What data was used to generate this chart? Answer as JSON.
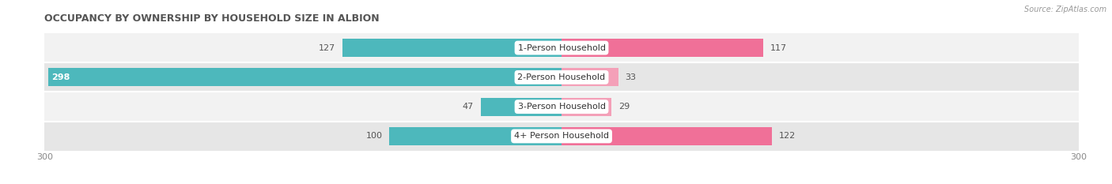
{
  "title": "OCCUPANCY BY OWNERSHIP BY HOUSEHOLD SIZE IN ALBION",
  "source": "Source: ZipAtlas.com",
  "categories": [
    "1-Person Household",
    "2-Person Household",
    "3-Person Household",
    "4+ Person Household"
  ],
  "owner_values": [
    127,
    298,
    47,
    100
  ],
  "renter_values": [
    117,
    33,
    29,
    122
  ],
  "owner_color": "#4DB8BC",
  "renter_color": "#F07098",
  "renter_color_light": "#F4A0B8",
  "row_bg_light": "#F2F2F2",
  "row_bg_dark": "#E6E6E6",
  "max_value": 300,
  "title_fontsize": 9,
  "label_fontsize": 8,
  "value_fontsize": 8,
  "bar_height": 0.62,
  "figsize": [
    14.06,
    2.33
  ],
  "dpi": 100
}
